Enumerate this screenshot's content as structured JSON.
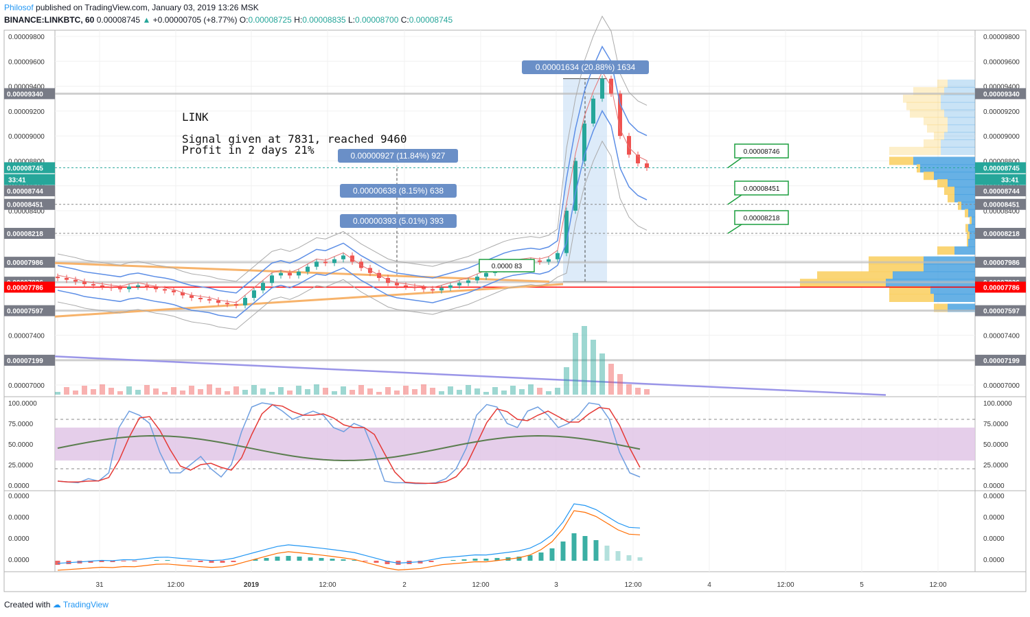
{
  "header": {
    "author": "Philosof",
    "published_text": "published on TradingView.com, January 03, 2019 13:26 MSK",
    "symbol": "BINANCE:LINKBTC, 60",
    "last": "0.00008745",
    "change": "+0.00000705 (+8.77%)",
    "o_label": "O:",
    "o": "0.00008725",
    "h_label": "H:",
    "h": "0.00008835",
    "l_label": "L:",
    "l": "0.00008700",
    "c_label": "C:",
    "c": "0.00008745"
  },
  "footer": {
    "created_with": "Created with",
    "brand": "TradingView"
  },
  "annotation": {
    "title": "LINK",
    "line1": "Signal given at 7831, reached 9460",
    "line2": "Profit in 2 days 21%"
  },
  "measures": [
    "0.00001634 (20.88%) 1634",
    "0.00000927 (11.84%) 927",
    "0.00000638 (8.15%) 638",
    "0.00000393 (5.01%) 393"
  ],
  "callouts": [
    "0.00008746",
    "0.00008451",
    "0.00008218",
    "0.0000 83"
  ],
  "colors": {
    "up": "#26a69a",
    "down": "#ef5350",
    "tag_gray": "#787b86",
    "tag_teal": "#26a69a",
    "tag_red": "#ff0000",
    "measure_bg": "#6a8fc7",
    "rsi_band": "#e1c5e6",
    "volume_profile_blue": "#4ca3e0",
    "volume_profile_yellow": "#f9d066"
  },
  "price_axis_labels": [
    "0.00009800",
    "0.00009600",
    "0.00009400",
    "0.00009200",
    "0.00009000",
    "0.00008800",
    "0.00008600",
    "0.00008400",
    "0.00007400",
    "0.00007000"
  ],
  "price_tags": [
    {
      "label": "0.00009340",
      "price": 9340,
      "kind": "gray"
    },
    {
      "label": "0.00008745",
      "price": 8745,
      "kind": "teal"
    },
    {
      "label": "33:41",
      "price": 8650,
      "kind": "teal"
    },
    {
      "label": "0.00008744",
      "price": 8560,
      "kind": "gray"
    },
    {
      "label": "0.00008451",
      "price": 8451,
      "kind": "gray"
    },
    {
      "label": "0.00008218",
      "price": 8218,
      "kind": "gray"
    },
    {
      "label": "0.00007986",
      "price": 7986,
      "kind": "gray"
    },
    {
      "label": "0.00007826",
      "price": 7826,
      "kind": "gray"
    },
    {
      "label": "0.00007786",
      "price": 7786,
      "kind": "red"
    },
    {
      "label": "0.00007597",
      "price": 7597,
      "kind": "gray"
    },
    {
      "label": "0.00007199",
      "price": 7199,
      "kind": "gray"
    }
  ],
  "rsi_axis_labels": [
    "100.0000",
    "75.0000",
    "50.0000",
    "25.0000",
    "0.0000"
  ],
  "macd_axis_labels": [
    "0.0000",
    "0.0000",
    "0.0000",
    "0.0000"
  ],
  "time_axis_labels": [
    "31",
    "12:00",
    "2019",
    "12:00",
    "2",
    "12:00",
    "3",
    "12:00",
    "4",
    "12:00",
    "5",
    "12:00"
  ],
  "chart_data": {
    "type": "line",
    "title": "",
    "symbol": "BINANCE:LINKBTC, 60",
    "price_unit_note": "close ×1e-8 BTC",
    "close_series_sampled": [
      7860,
      7845,
      7830,
      7810,
      7800,
      7790,
      7780,
      7770,
      7790,
      7800,
      7785,
      7770,
      7760,
      7745,
      7720,
      7700,
      7690,
      7680,
      7660,
      7650,
      7640,
      7700,
      7760,
      7820,
      7880,
      7900,
      7880,
      7910,
      7950,
      7990,
      7980,
      8010,
      8040,
      7990,
      7940,
      7900,
      7860,
      7820,
      7800,
      7790,
      7780,
      7770,
      7760,
      7780,
      7800,
      7820,
      7840,
      7870,
      7900,
      7930,
      7960,
      7980,
      7990,
      8000,
      7990,
      8010,
      8060,
      8400,
      8800,
      9100,
      9300,
      9460,
      9340,
      9000,
      8850,
      8780,
      8745
    ],
    "horizontal_levels": [
      9340,
      8745,
      8451,
      8218,
      7986,
      7826,
      7786,
      7597,
      7199
    ],
    "signal_entry": 7831,
    "signal_high": 9460,
    "ylim": [
      6950,
      9850
    ],
    "grid": true
  }
}
